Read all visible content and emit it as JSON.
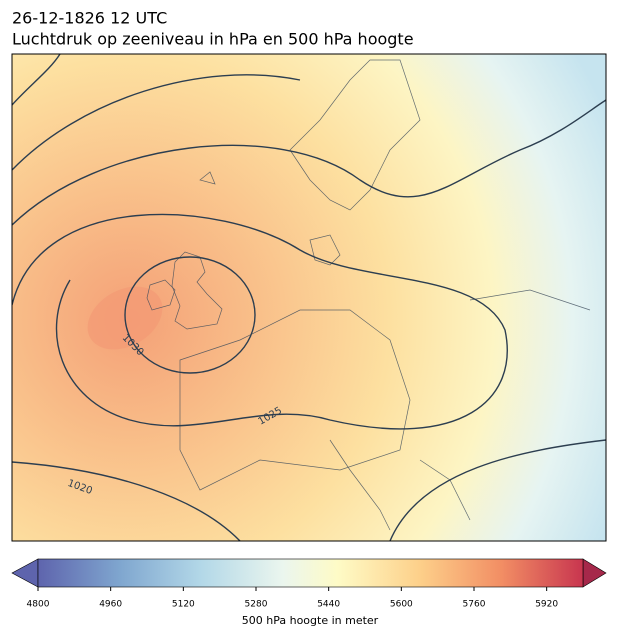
{
  "title": "26-12-1826 12 UTC",
  "subtitle": "Luchtdruk op zeeniveau in hPa en 500 hPa hoogte",
  "contour_labels": [
    "1030",
    "1025",
    "1020"
  ],
  "colorbar": {
    "clim": [
      4800,
      6000
    ],
    "ticks": [
      4800,
      4960,
      5120,
      5280,
      5440,
      5600,
      5760,
      5920
    ],
    "label": "500 hPa hoogte in meter"
  }
}
